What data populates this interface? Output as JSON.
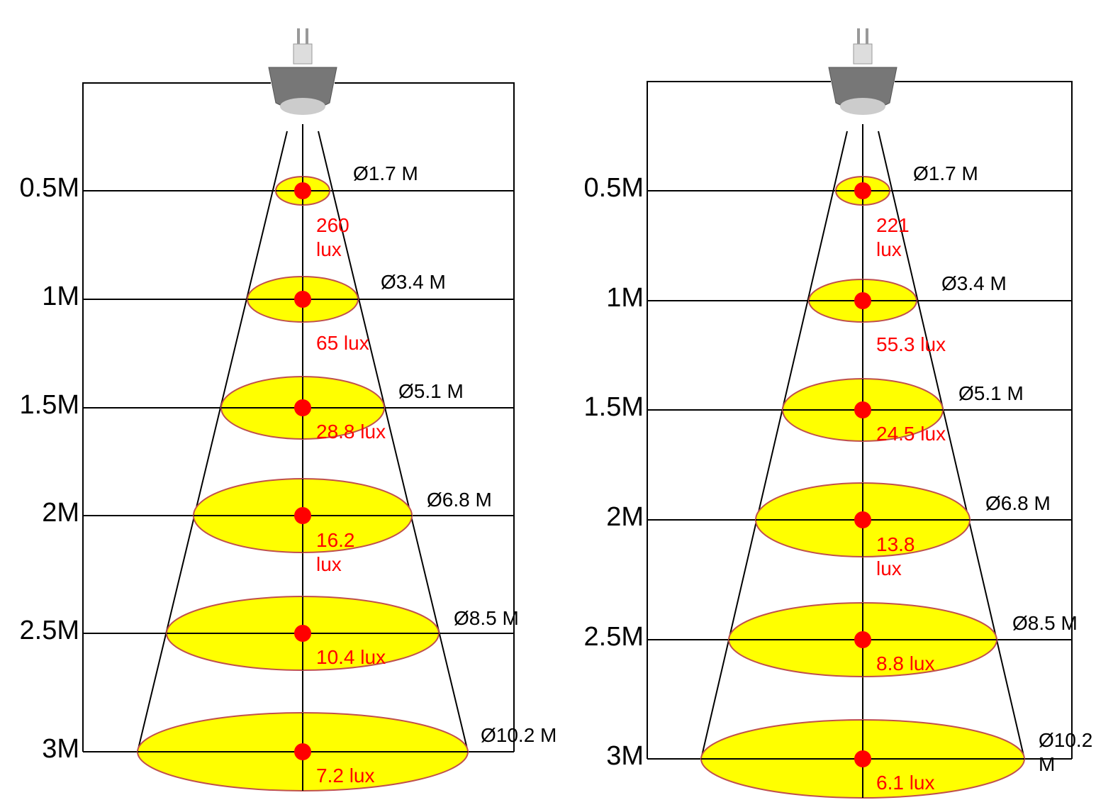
{
  "panels": [
    {
      "levels": [
        {
          "distance": "0.5M",
          "diameter": "Ø1.7 M",
          "lux": "260 lux"
        },
        {
          "distance": "1M",
          "diameter": "Ø3.4 M",
          "lux": "65 lux"
        },
        {
          "distance": "1.5M",
          "diameter": "Ø5.1 M",
          "lux": "28.8 lux"
        },
        {
          "distance": "2M",
          "diameter": "Ø6.8 M",
          "lux": "16.2 lux"
        },
        {
          "distance": "2.5M",
          "diameter": "Ø8.5 M",
          "lux": "10.4 lux"
        },
        {
          "distance": "3M",
          "diameter": "Ø10.2 M",
          "lux": "7.2 lux"
        }
      ]
    },
    {
      "levels": [
        {
          "distance": "0.5M",
          "diameter": "Ø1.7 M",
          "lux": "221 lux"
        },
        {
          "distance": "1M",
          "diameter": "Ø3.4 M",
          "lux": "55.3 lux"
        },
        {
          "distance": "1.5M",
          "diameter": "Ø5.1 M",
          "lux": "24.5 lux"
        },
        {
          "distance": "2M",
          "diameter": "Ø6.8 M",
          "lux": "13.8 lux"
        },
        {
          "distance": "2.5M",
          "diameter": "Ø8.5 M",
          "lux": "8.8 lux"
        },
        {
          "distance": "3M",
          "diameter": "Ø10.2 M",
          "lux": "6.1 lux"
        }
      ]
    }
  ]
}
